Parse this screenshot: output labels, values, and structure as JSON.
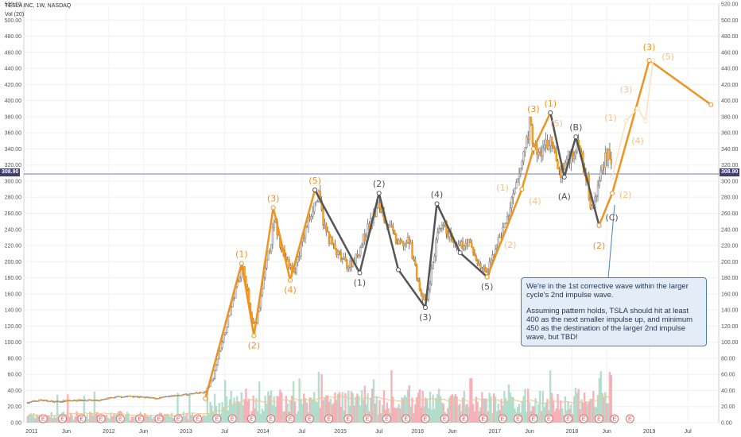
{
  "header": {
    "symbol": "TESLA INC, 1W, NASDAQ",
    "indicator": "Vol (20)"
  },
  "last_price": "308.90",
  "earnings_marker": "E",
  "callout": {
    "p1": "We're in the 1st corrective wave within the larger cycle's 2nd impulse wave.",
    "p2": "Assuming pattern holds, TSLA should hit at least 400 as the next smaller impulse up, and minimum 450 as the destination of the larger 2nd impulse wave, but TBD!"
  },
  "colors": {
    "orange": "#f0931e",
    "dark": "#555555",
    "up": "#3a3a3a",
    "vol_up": "#a8d8c6",
    "vol_down": "#f4a7ad",
    "ma": "#f7c28a",
    "last_line": "#7b77b4"
  },
  "chart_data": {
    "type": "candlestick",
    "title": "",
    "y_ticks": [
      "0.00",
      "20.00",
      "40.00",
      "60.00",
      "80.00",
      "100.00",
      "120.00",
      "140.00",
      "160.00",
      "180.00",
      "200.00",
      "220.00",
      "240.00",
      "260.00",
      "280.00",
      "300.00",
      "320.00",
      "340.00",
      "360.00",
      "380.00",
      "400.00",
      "420.00",
      "440.00",
      "460.00",
      "480.00",
      "500.00",
      "520.00"
    ],
    "ylim": [
      0,
      520
    ],
    "xlim": [
      2010.9,
      2019.9
    ],
    "x_ticks": [
      {
        "label": "2011",
        "t": 2011.0
      },
      {
        "label": "Jun",
        "t": 2011.45
      },
      {
        "label": "2012",
        "t": 2012.0
      },
      {
        "label": "Jun",
        "t": 2012.45
      },
      {
        "label": "2013",
        "t": 2013.0
      },
      {
        "label": "Jul",
        "t": 2013.5
      },
      {
        "label": "2014",
        "t": 2014.0
      },
      {
        "label": "Jul",
        "t": 2014.5
      },
      {
        "label": "2015",
        "t": 2015.0
      },
      {
        "label": "Jul",
        "t": 2015.5
      },
      {
        "label": "2016",
        "t": 2016.0
      },
      {
        "label": "Jun",
        "t": 2016.45
      },
      {
        "label": "2017",
        "t": 2017.0
      },
      {
        "label": "Jun",
        "t": 2017.45
      },
      {
        "label": "2018",
        "t": 2018.0
      },
      {
        "label": "Jun",
        "t": 2018.45
      },
      {
        "label": "2019",
        "t": 2019.0
      },
      {
        "label": "Jul",
        "t": 2019.5
      }
    ],
    "price_path": [
      [
        2010.95,
        25
      ],
      [
        2011.1,
        28
      ],
      [
        2011.3,
        26
      ],
      [
        2011.6,
        28
      ],
      [
        2011.9,
        28
      ],
      [
        2012.1,
        32
      ],
      [
        2012.3,
        33
      ],
      [
        2012.6,
        30
      ],
      [
        2012.9,
        34
      ],
      [
        2013.1,
        36
      ],
      [
        2013.25,
        38
      ],
      [
        2013.35,
        55
      ],
      [
        2013.45,
        95
      ],
      [
        2013.55,
        130
      ],
      [
        2013.68,
        180
      ],
      [
        2013.75,
        192
      ],
      [
        2013.85,
        125
      ],
      [
        2013.9,
        120
      ],
      [
        2013.95,
        145
      ],
      [
        2014.05,
        200
      ],
      [
        2014.15,
        250
      ],
      [
        2014.2,
        230
      ],
      [
        2014.3,
        200
      ],
      [
        2014.4,
        185
      ],
      [
        2014.5,
        225
      ],
      [
        2014.65,
        270
      ],
      [
        2014.72,
        280
      ],
      [
        2014.8,
        240
      ],
      [
        2014.95,
        210
      ],
      [
        2015.1,
        195
      ],
      [
        2015.2,
        205
      ],
      [
        2015.35,
        240
      ],
      [
        2015.5,
        270
      ],
      [
        2015.6,
        250
      ],
      [
        2015.75,
        220
      ],
      [
        2015.9,
        225
      ],
      [
        2016.05,
        155
      ],
      [
        2016.12,
        150
      ],
      [
        2016.25,
        230
      ],
      [
        2016.35,
        245
      ],
      [
        2016.5,
        215
      ],
      [
        2016.65,
        225
      ],
      [
        2016.8,
        195
      ],
      [
        2016.9,
        185
      ],
      [
        2017.0,
        215
      ],
      [
        2017.15,
        250
      ],
      [
        2017.3,
        300
      ],
      [
        2017.45,
        370
      ],
      [
        2017.55,
        330
      ],
      [
        2017.7,
        350
      ],
      [
        2017.85,
        310
      ],
      [
        2017.95,
        330
      ],
      [
        2018.1,
        345
      ],
      [
        2018.2,
        300
      ],
      [
        2018.25,
        260
      ],
      [
        2018.33,
        290
      ],
      [
        2018.42,
        330
      ],
      [
        2018.48,
        340
      ],
      [
        2018.52,
        310
      ]
    ],
    "overlays": [
      {
        "color": "#f0931e",
        "points": [
          [
            2013.25,
            30
          ],
          [
            2013.72,
            198
          ],
          [
            2013.88,
            108
          ],
          [
            2014.13,
            267
          ],
          [
            2014.35,
            177
          ],
          [
            2014.67,
            289
          ]
        ]
      },
      {
        "color": "#555555",
        "points": [
          [
            2014.67,
            289
          ],
          [
            2015.25,
            186
          ],
          [
            2015.5,
            285
          ],
          [
            2015.75,
            190
          ],
          [
            2016.1,
            143
          ],
          [
            2016.25,
            272
          ],
          [
            2016.55,
            211
          ],
          [
            2016.9,
            181
          ]
        ]
      },
      {
        "color": "#f0931e",
        "points": [
          [
            2016.9,
            181
          ],
          [
            2017.35,
            290
          ],
          [
            2017.5,
            340
          ],
          [
            2017.72,
            385
          ]
        ]
      },
      {
        "color": "#555555",
        "points": [
          [
            2017.72,
            385
          ],
          [
            2017.9,
            305
          ],
          [
            2018.05,
            355
          ],
          [
            2018.35,
            245
          ]
        ]
      },
      {
        "color": "#f0931e",
        "points": [
          [
            2018.35,
            245
          ],
          [
            2018.52,
            285
          ],
          [
            2019.0,
            450
          ],
          [
            2019.8,
            395
          ]
        ]
      },
      {
        "color": "#fbe0c0",
        "points": [
          [
            2018.52,
            305
          ],
          [
            2018.7,
            375
          ],
          [
            2018.85,
            390
          ],
          [
            2018.95,
            375
          ],
          [
            2019.05,
            450
          ]
        ]
      }
    ],
    "wave_labels": [
      {
        "text": "(1)",
        "t": 2013.72,
        "v": 198,
        "pos": "above",
        "color": "#f0931e"
      },
      {
        "text": "(2)",
        "t": 2013.88,
        "v": 108,
        "pos": "below",
        "color": "#f0931e"
      },
      {
        "text": "(3)",
        "t": 2014.13,
        "v": 267,
        "pos": "above",
        "color": "#f0931e"
      },
      {
        "text": "(4)",
        "t": 2014.35,
        "v": 177,
        "pos": "below",
        "color": "#f0931e"
      },
      {
        "text": "(5)",
        "t": 2014.67,
        "v": 289,
        "pos": "above",
        "color": "#f0931e"
      },
      {
        "text": "(1)",
        "t": 2015.25,
        "v": 186,
        "pos": "below",
        "color": "#555555"
      },
      {
        "text": "(2)",
        "t": 2015.5,
        "v": 285,
        "pos": "above",
        "color": "#555555"
      },
      {
        "text": "(3)",
        "t": 2016.1,
        "v": 143,
        "pos": "below",
        "color": "#555555"
      },
      {
        "text": "(4)",
        "t": 2016.25,
        "v": 272,
        "pos": "above",
        "color": "#555555"
      },
      {
        "text": "(5)",
        "t": 2016.9,
        "v": 181,
        "pos": "below",
        "color": "#555555"
      },
      {
        "text": "(1)",
        "t": 2017.1,
        "v": 280,
        "pos": "above",
        "color": "#f5c08a"
      },
      {
        "text": "(2)",
        "t": 2017.2,
        "v": 233,
        "pos": "below",
        "color": "#f5c08a"
      },
      {
        "text": "(4)",
        "t": 2017.52,
        "v": 287,
        "pos": "below",
        "color": "#f5c08a"
      },
      {
        "text": "(3)",
        "t": 2017.5,
        "v": 378,
        "pos": "above",
        "color": "#f0931e"
      },
      {
        "text": "(1)",
        "t": 2017.72,
        "v": 385,
        "pos": "above",
        "color": "#f0931e"
      },
      {
        "text": "(5)",
        "t": 2017.8,
        "v": 360,
        "pos": "above",
        "color": "#f5c08a"
      },
      {
        "text": "(A)",
        "t": 2017.9,
        "v": 293,
        "pos": "below",
        "color": "#555555"
      },
      {
        "text": "(B)",
        "t": 2018.05,
        "v": 355,
        "pos": "above",
        "color": "#555555"
      },
      {
        "text": "(C)",
        "t": 2018.37,
        "v": 255,
        "pos": "right",
        "color": "#555555"
      },
      {
        "text": "(2)",
        "t": 2018.35,
        "v": 232,
        "pos": "below",
        "color": "#f0931e"
      },
      {
        "text": "(1)",
        "t": 2018.5,
        "v": 367,
        "pos": "above",
        "color": "#f5c08a"
      },
      {
        "text": "(2)",
        "t": 2018.55,
        "v": 283,
        "pos": "right",
        "color": "#f5c08a"
      },
      {
        "text": "(3)",
        "t": 2018.7,
        "v": 402,
        "pos": "above",
        "color": "#f5c08a"
      },
      {
        "text": "(4)",
        "t": 2018.85,
        "v": 362,
        "pos": "below",
        "color": "#f5c08a"
      },
      {
        "text": "(3)",
        "t": 2019.0,
        "v": 455,
        "pos": "above",
        "color": "#f0931e"
      },
      {
        "text": "(5)",
        "t": 2019.1,
        "v": 455,
        "pos": "right",
        "color": "#f5c08a"
      }
    ],
    "earnings_t": [
      2011.15,
      2011.4,
      2011.65,
      2011.9,
      2012.15,
      2012.4,
      2012.65,
      2012.9,
      2013.15,
      2013.4,
      2013.6,
      2013.85,
      2014.1,
      2014.35,
      2014.6,
      2014.85,
      2015.1,
      2015.35,
      2015.6,
      2015.85,
      2016.1,
      2016.35,
      2016.6,
      2016.85,
      2017.1,
      2017.3,
      2017.5,
      2017.7,
      2017.95,
      2018.15,
      2018.35,
      2018.55,
      2018.75
    ]
  }
}
